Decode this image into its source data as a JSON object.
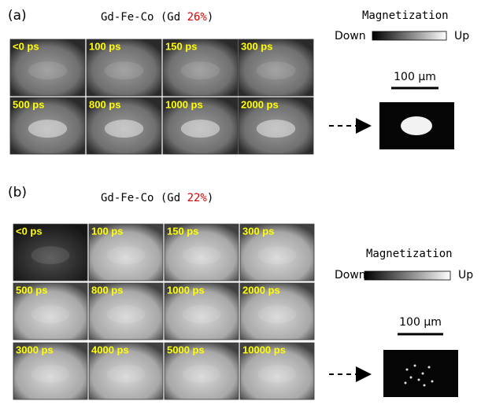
{
  "panels": [
    {
      "label": "(a)",
      "title": "Gd-Fe-Co (Gd ",
      "title_highlight": "26%",
      "title_end": ")",
      "frames": [
        "<0 ps",
        "100 ps",
        "150 ps",
        "300 ps",
        "500 ps",
        "800 ps",
        "1000 ps",
        "2000 ps"
      ],
      "colorbar": {
        "label": "Magnetization",
        "low": "Down",
        "high": "Up"
      },
      "scale_bar": "100 μm"
    },
    {
      "label": "(b)",
      "title": "Gd-Fe-Co (Gd ",
      "title_highlight": "22%",
      "title_end": ")",
      "frames": [
        "<0 ps",
        "100 ps",
        "150 ps",
        "300 ps",
        "500 ps",
        "800 ps",
        "1000 ps",
        "2000 ps",
        "3000 ps",
        "4000 ps",
        "5000 ps",
        "10000 ps"
      ],
      "colorbar": {
        "label": "Magnetization",
        "low": "Down",
        "high": "Up"
      },
      "scale_bar": "100 μm"
    }
  ]
}
